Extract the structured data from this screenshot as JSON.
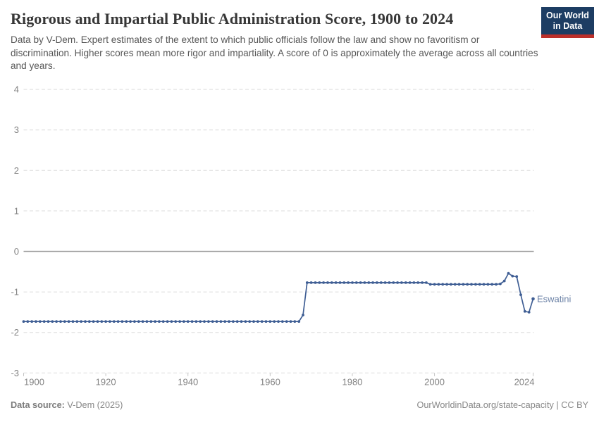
{
  "header": {
    "title": "Rigorous and Impartial Public Administration Score, 1900 to 2024",
    "subtitle": "Data by V-Dem. Expert estimates of the extent to which public officials follow the law and show no favoritism or discrimination. Higher scores mean more rigor and impartiality. A score of 0 is approximately the average across all countries and years.",
    "logo": {
      "line1": "Our World",
      "line2": "in Data",
      "bg_color": "#1d3d63",
      "accent_color": "#bc2f2a"
    }
  },
  "footer": {
    "source_label": "Data source:",
    "source_value": " V-Dem (2025)",
    "note": "OurWorldinData.org/state-capacity | CC BY"
  },
  "chart_data": {
    "type": "line",
    "title": "Rigorous and Impartial Public Administration Score, 1900 to 2024",
    "xlabel": "",
    "ylabel": "",
    "xlim": [
      1900,
      2024
    ],
    "ylim": [
      -3,
      4
    ],
    "x_ticks": [
      1900,
      1920,
      1940,
      1960,
      1980,
      2000,
      2024
    ],
    "y_ticks": [
      4,
      3,
      2,
      1,
      0,
      -1,
      -2,
      -3
    ],
    "grid": "dashed horizontal gridlines, solid zero line",
    "legend_position": "end-of-line label",
    "line_color": "#3f5e94",
    "entity_label_color": "#6d83a7",
    "gridline_color": "#dedede",
    "zero_line_color": "#a6a6a6",
    "tick_color": "#c4c4c4",
    "series": [
      {
        "name": "Eswatini",
        "segments": [
          {
            "from": 1900,
            "to": 1967,
            "value": -1.73
          },
          {
            "from": 1968,
            "to": 1968,
            "value": -1.57
          },
          {
            "from": 1969,
            "to": 1998,
            "value": -0.77
          },
          {
            "from": 1999,
            "to": 2015,
            "value": -0.81
          },
          {
            "from": 2016,
            "to": 2016,
            "value": -0.8
          },
          {
            "from": 2017,
            "to": 2017,
            "value": -0.73
          },
          {
            "from": 2018,
            "to": 2018,
            "value": -0.54
          },
          {
            "from": 2019,
            "to": 2019,
            "value": -0.61
          },
          {
            "from": 2020,
            "to": 2020,
            "value": -0.62
          },
          {
            "from": 2021,
            "to": 2021,
            "value": -1.07
          },
          {
            "from": 2022,
            "to": 2022,
            "value": -1.48
          },
          {
            "from": 2023,
            "to": 2023,
            "value": -1.5
          },
          {
            "from": 2024,
            "to": 2024,
            "value": -1.17
          }
        ]
      }
    ]
  }
}
